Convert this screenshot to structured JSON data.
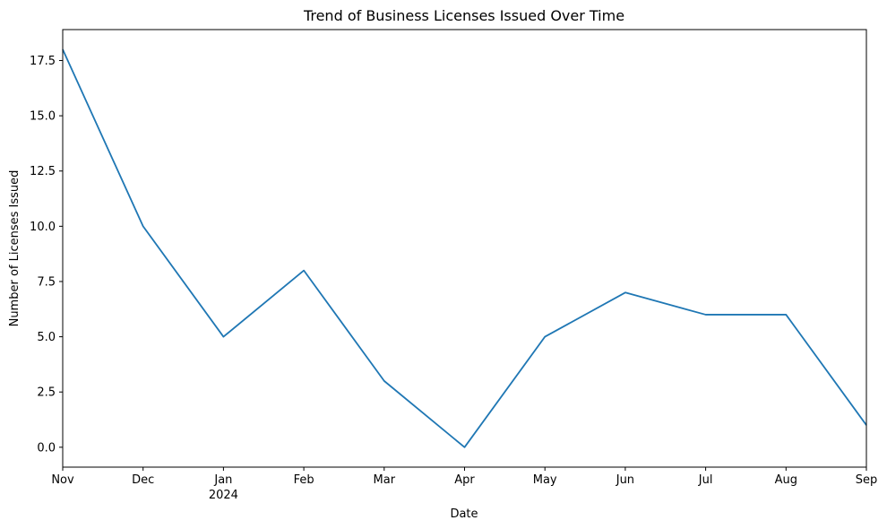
{
  "chart_data": {
    "type": "line",
    "title": "Trend of Business Licenses Issued Over Time",
    "xlabel": "Date",
    "ylabel": "Number of Licenses Issued",
    "x": [
      "2023-11",
      "2023-12",
      "2024-01",
      "2024-02",
      "2024-03",
      "2024-04",
      "2024-05",
      "2024-06",
      "2024-07",
      "2024-08",
      "2024-09"
    ],
    "x_tick_labels": [
      "Nov",
      "Dec",
      "Jan",
      "Feb",
      "Mar",
      "Apr",
      "May",
      "Jun",
      "Jul",
      "Aug",
      "Sep"
    ],
    "x_tick_sublabel": {
      "tick": "Jan",
      "text": "2024"
    },
    "series": [
      {
        "values": [
          18,
          10,
          5,
          8,
          3,
          0,
          5,
          7,
          6,
          6,
          1
        ],
        "color": "#1f77b4"
      }
    ],
    "y_ticks": [
      "0.0",
      "2.5",
      "5.0",
      "7.5",
      "10.0",
      "12.5",
      "15.0",
      "17.5"
    ],
    "ylim": [
      -0.9,
      18.9
    ],
    "grid": false,
    "legend": "none"
  }
}
